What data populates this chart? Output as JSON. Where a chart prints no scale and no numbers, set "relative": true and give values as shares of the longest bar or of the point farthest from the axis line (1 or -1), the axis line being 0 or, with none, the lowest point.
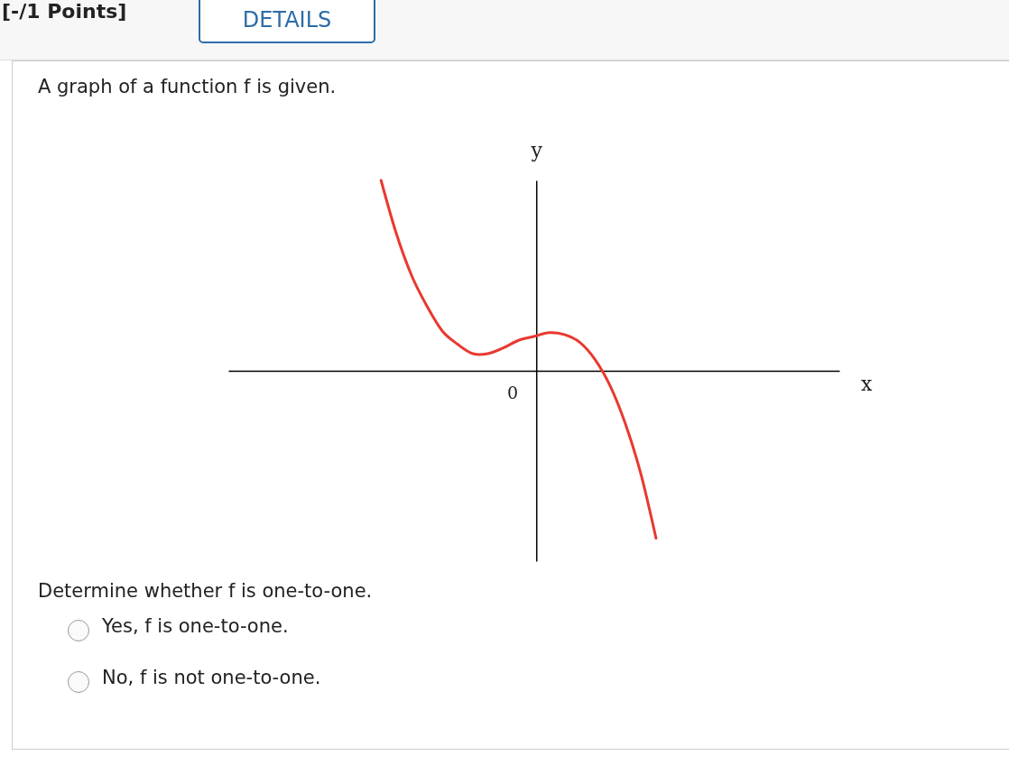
{
  "chart_data": {
    "type": "line",
    "title": "A graph of a function f is given.",
    "xlabel": "x",
    "ylabel": "y",
    "relative": true,
    "categories": [
      null,
      null,
      null,
      null,
      null,
      null,
      null,
      null,
      null,
      null,
      null,
      null,
      null,
      null,
      null,
      null,
      null,
      null,
      null,
      null,
      null,
      null,
      null,
      null,
      null,
      null,
      null,
      null,
      null,
      null,
      null,
      null,
      null,
      null,
      null,
      null,
      null,
      null,
      null,
      null,
      null
    ],
    "series": [
      {
        "color": "#e8392f",
        "values": [
          null,
          null,
          null,
          null,
          null,
          null,
          null,
          null,
          null,
          null,
          1.0,
          0.72,
          0.5,
          0.34,
          0.21,
          0.14,
          0.09,
          0.09,
          0.12,
          0.16,
          0.18,
          0.2,
          0.19,
          0.15,
          0.06,
          -0.08,
          -0.28,
          -0.54,
          -0.88,
          null,
          null,
          null,
          null,
          null,
          null,
          null,
          null,
          null,
          null,
          null,
          null
        ]
      }
    ],
    "annotations": [
      "[-/1 Points]",
      "DETAILS",
      "Determine whether f is one-to-one.",
      "Yes, f is one-to-one.",
      "No, f is not one-to-one.",
      "0"
    ]
  }
}
